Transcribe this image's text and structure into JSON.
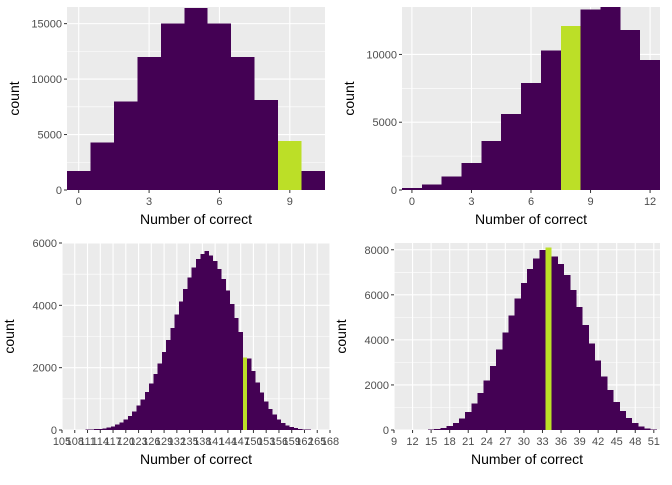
{
  "colors": {
    "bar": "#440154",
    "highlight": "#BCDF27",
    "panel_bg": "#EBEBEB",
    "grid": "#FFFFFF",
    "tick_text": "#4D4D4D",
    "axis_title": "#000000"
  },
  "chart_data": [
    {
      "type": "bar",
      "xlabel": "Number of correct",
      "ylabel": "count",
      "grid": true,
      "x": [
        0,
        1,
        2,
        3,
        4,
        5,
        6,
        7,
        8,
        9,
        10
      ],
      "values": [
        1700,
        4300,
        8000,
        12000,
        15000,
        16400,
        15000,
        12000,
        8100,
        4400,
        1700
      ],
      "highlight_x": 9,
      "xlim": [
        -0.5,
        10.5
      ],
      "ylim": [
        0,
        16500
      ],
      "xticks": [
        0,
        3,
        6,
        9
      ],
      "yticks": [
        0,
        5000,
        10000,
        15000
      ]
    },
    {
      "type": "bar",
      "xlabel": "Number of correct",
      "ylabel": "count",
      "grid": true,
      "x": [
        0,
        1,
        2,
        3,
        4,
        5,
        6,
        7,
        8,
        9,
        10,
        11,
        12
      ],
      "values": [
        150,
        400,
        1000,
        2000,
        3600,
        5600,
        7900,
        10300,
        12100,
        13300,
        13500,
        11800,
        9600
      ],
      "highlight_x": 8,
      "xlim": [
        -0.5,
        12.5
      ],
      "ylim": [
        0,
        13500
      ],
      "xticks": [
        0,
        3,
        6,
        9,
        12
      ],
      "yticks": [
        0,
        5000,
        10000
      ]
    },
    {
      "type": "bar",
      "xlabel": "Number of correct",
      "ylabel": "count",
      "grid": true,
      "x": [
        109,
        110,
        111,
        112,
        113,
        114,
        115,
        116,
        117,
        118,
        119,
        120,
        121,
        122,
        123,
        124,
        125,
        126,
        127,
        128,
        129,
        130,
        131,
        132,
        133,
        134,
        135,
        136,
        137,
        138,
        139,
        140,
        141,
        142,
        143,
        144,
        145,
        146,
        147,
        148,
        149,
        150,
        151,
        152,
        153,
        154,
        155,
        156,
        157,
        158,
        159,
        160,
        161,
        162,
        163,
        164,
        165,
        166
      ],
      "values": [
        0,
        5,
        10,
        15,
        25,
        35,
        55,
        80,
        120,
        170,
        240,
        330,
        450,
        600,
        780,
        980,
        1220,
        1500,
        1800,
        2130,
        2500,
        2880,
        3280,
        3700,
        4120,
        4520,
        4890,
        5210,
        5480,
        5650,
        5750,
        5600,
        5430,
        5170,
        4850,
        4470,
        4050,
        3600,
        3150,
        2330,
        2300,
        1900,
        1530,
        1200,
        910,
        680,
        490,
        340,
        230,
        150,
        95,
        60,
        35,
        20,
        10,
        5,
        2,
        0
      ],
      "highlight_x": 148,
      "xlim": [
        105,
        168
      ],
      "ylim": [
        0,
        6000
      ],
      "xticks": [
        105,
        108,
        111,
        114,
        117,
        120,
        123,
        126,
        129,
        132,
        135,
        138,
        141,
        144,
        147,
        150,
        153,
        156,
        159,
        162,
        165,
        168
      ],
      "xtick_labels": [
        "105",
        "108",
        "111",
        "114",
        "117",
        "120",
        "123",
        "126",
        "129",
        "132",
        "135",
        "138",
        "141",
        "144",
        "147",
        "150",
        "153",
        "156",
        "159",
        "162",
        "165",
        "168"
      ],
      "yticks": [
        0,
        2000,
        4000,
        6000
      ]
    },
    {
      "type": "bar",
      "xlabel": "Number of correct",
      "ylabel": "count",
      "grid": true,
      "x": [
        13,
        14,
        15,
        16,
        17,
        18,
        19,
        20,
        21,
        22,
        23,
        24,
        25,
        26,
        27,
        28,
        29,
        30,
        31,
        32,
        33,
        34,
        35,
        36,
        37,
        38,
        39,
        40,
        41,
        42,
        43,
        44,
        45,
        46,
        47,
        48,
        49,
        50,
        51
      ],
      "values": [
        2,
        5,
        15,
        40,
        90,
        180,
        320,
        520,
        800,
        1170,
        1650,
        2200,
        2850,
        3570,
        4320,
        5080,
        5830,
        6530,
        7150,
        7620,
        8000,
        8100,
        7700,
        7360,
        6890,
        6210,
        5450,
        4650,
        3850,
        3080,
        2380,
        1770,
        1250,
        840,
        530,
        310,
        160,
        70,
        20
      ],
      "highlight_x": 34,
      "xlim": [
        9,
        52
      ],
      "ylim": [
        0,
        8300
      ],
      "xticks": [
        9,
        12,
        15,
        18,
        21,
        24,
        27,
        30,
        33,
        36,
        39,
        42,
        45,
        48,
        51
      ],
      "yticks": [
        0,
        2000,
        4000,
        6000,
        8000
      ]
    }
  ]
}
